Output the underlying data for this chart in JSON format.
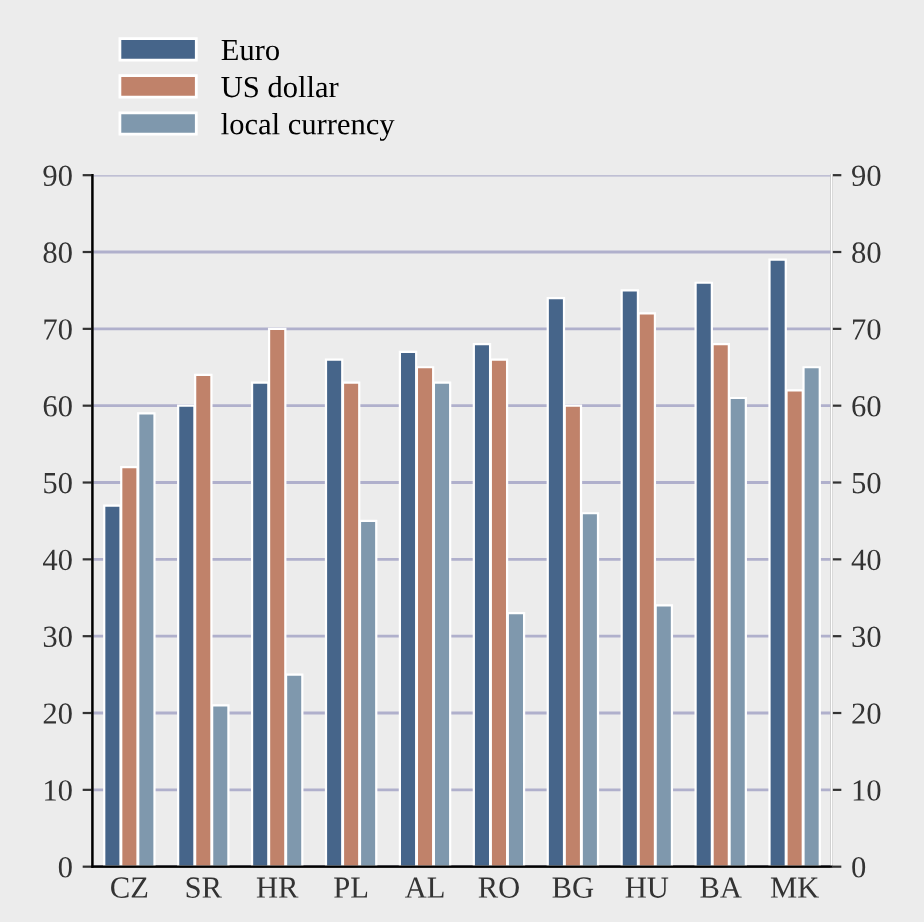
{
  "chart_data": {
    "type": "bar",
    "categories": [
      "CZ",
      "SR",
      "HR",
      "PL",
      "AL",
      "RO",
      "BG",
      "HU",
      "BA",
      "MK"
    ],
    "series": [
      {
        "name": "Euro",
        "color": "#46658a",
        "values": [
          47,
          60,
          63,
          66,
          67,
          68,
          74,
          75,
          76,
          79
        ]
      },
      {
        "name": "US dollar",
        "color": "#c0826a",
        "values": [
          52,
          64,
          70,
          63,
          65,
          66,
          60,
          72,
          68,
          62
        ]
      },
      {
        "name": "local currency",
        "color": "#7f98ad",
        "values": [
          59,
          21,
          25,
          45,
          63,
          33,
          46,
          34,
          61,
          65
        ]
      }
    ],
    "ylim": [
      0,
      90
    ],
    "yticks": [
      0,
      10,
      20,
      30,
      40,
      50,
      60,
      70,
      80,
      90
    ],
    "y2lim": [
      0,
      90
    ],
    "y2ticks": [
      0,
      10,
      20,
      30,
      40,
      50,
      60,
      70,
      80,
      90
    ],
    "grid": true,
    "legend": "top left"
  }
}
